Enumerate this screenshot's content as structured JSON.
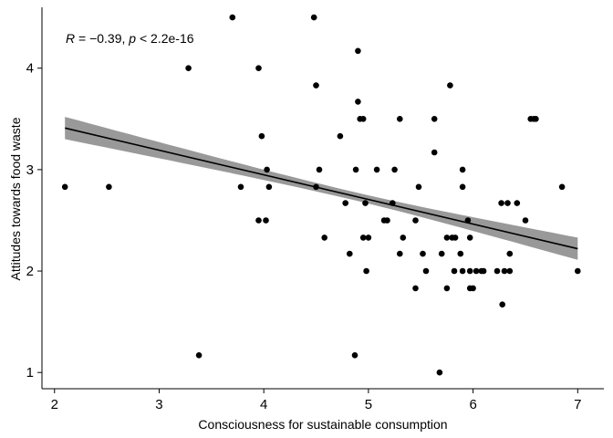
{
  "chart_data": {
    "type": "scatter",
    "xlabel": "Consciousness for sustainable consumption",
    "ylabel": "Attitudes towards food waste",
    "xlim": [
      1.88,
      7.25
    ],
    "ylim": [
      0.84,
      4.6
    ],
    "xticks": [
      2,
      3,
      4,
      5,
      6,
      7
    ],
    "yticks": [
      1,
      2,
      3,
      4
    ],
    "annotation": {
      "R_label": "R",
      "R_text": " = −0.39, ",
      "p_label": "p",
      "p_text": " < 2.2e-16"
    },
    "regression": {
      "x": [
        2.1,
        7.0
      ],
      "y": [
        3.41,
        2.22
      ],
      "ci_lower": [
        3.31,
        2.11
      ],
      "ci_upper": [
        3.52,
        2.33
      ],
      "ci_mid_halfwidth": 0.04,
      "ci_mid_x": 4.85
    },
    "points": [
      [
        2.1,
        2.83
      ],
      [
        2.52,
        2.83
      ],
      [
        3.28,
        4.0
      ],
      [
        3.38,
        1.17
      ],
      [
        3.7,
        4.5
      ],
      [
        3.78,
        2.83
      ],
      [
        3.95,
        4.0
      ],
      [
        3.95,
        2.5
      ],
      [
        3.98,
        3.33
      ],
      [
        4.02,
        2.5
      ],
      [
        4.03,
        3.0
      ],
      [
        4.05,
        2.83
      ],
      [
        4.48,
        4.5
      ],
      [
        4.5,
        3.83
      ],
      [
        4.5,
        2.83
      ],
      [
        4.53,
        3.0
      ],
      [
        4.58,
        2.33
      ],
      [
        4.73,
        3.33
      ],
      [
        4.78,
        2.67
      ],
      [
        4.82,
        2.17
      ],
      [
        4.87,
        1.17
      ],
      [
        4.88,
        3.0
      ],
      [
        4.9,
        4.17
      ],
      [
        4.9,
        3.67
      ],
      [
        4.92,
        3.5
      ],
      [
        4.95,
        3.5
      ],
      [
        4.95,
        2.33
      ],
      [
        4.97,
        2.67
      ],
      [
        4.98,
        2.0
      ],
      [
        5.0,
        2.33
      ],
      [
        5.08,
        3.0
      ],
      [
        5.15,
        2.5
      ],
      [
        5.18,
        2.5
      ],
      [
        5.23,
        2.67
      ],
      [
        5.25,
        3.0
      ],
      [
        5.3,
        3.5
      ],
      [
        5.3,
        2.17
      ],
      [
        5.33,
        2.33
      ],
      [
        5.45,
        2.5
      ],
      [
        5.45,
        1.83
      ],
      [
        5.48,
        2.83
      ],
      [
        5.52,
        2.17
      ],
      [
        5.55,
        2.0
      ],
      [
        5.63,
        3.5
      ],
      [
        5.63,
        3.17
      ],
      [
        5.68,
        1.0
      ],
      [
        5.7,
        2.17
      ],
      [
        5.75,
        2.33
      ],
      [
        5.75,
        1.83
      ],
      [
        5.78,
        3.83
      ],
      [
        5.8,
        2.33
      ],
      [
        5.82,
        2.0
      ],
      [
        5.83,
        2.33
      ],
      [
        5.88,
        2.17
      ],
      [
        5.9,
        3.0
      ],
      [
        5.9,
        2.83
      ],
      [
        5.9,
        2.0
      ],
      [
        5.95,
        2.5
      ],
      [
        5.97,
        2.33
      ],
      [
        5.97,
        2.0
      ],
      [
        5.97,
        1.83
      ],
      [
        6.0,
        1.83
      ],
      [
        6.03,
        2.0
      ],
      [
        6.08,
        2.0
      ],
      [
        6.1,
        2.0
      ],
      [
        6.23,
        2.0
      ],
      [
        6.27,
        2.67
      ],
      [
        6.28,
        1.67
      ],
      [
        6.3,
        2.0
      ],
      [
        6.33,
        2.67
      ],
      [
        6.35,
        2.17
      ],
      [
        6.35,
        2.0
      ],
      [
        6.42,
        2.67
      ],
      [
        6.5,
        2.5
      ],
      [
        6.55,
        3.5
      ],
      [
        6.58,
        3.5
      ],
      [
        6.6,
        3.5
      ],
      [
        6.85,
        2.83
      ],
      [
        7.0,
        2.0
      ]
    ]
  }
}
